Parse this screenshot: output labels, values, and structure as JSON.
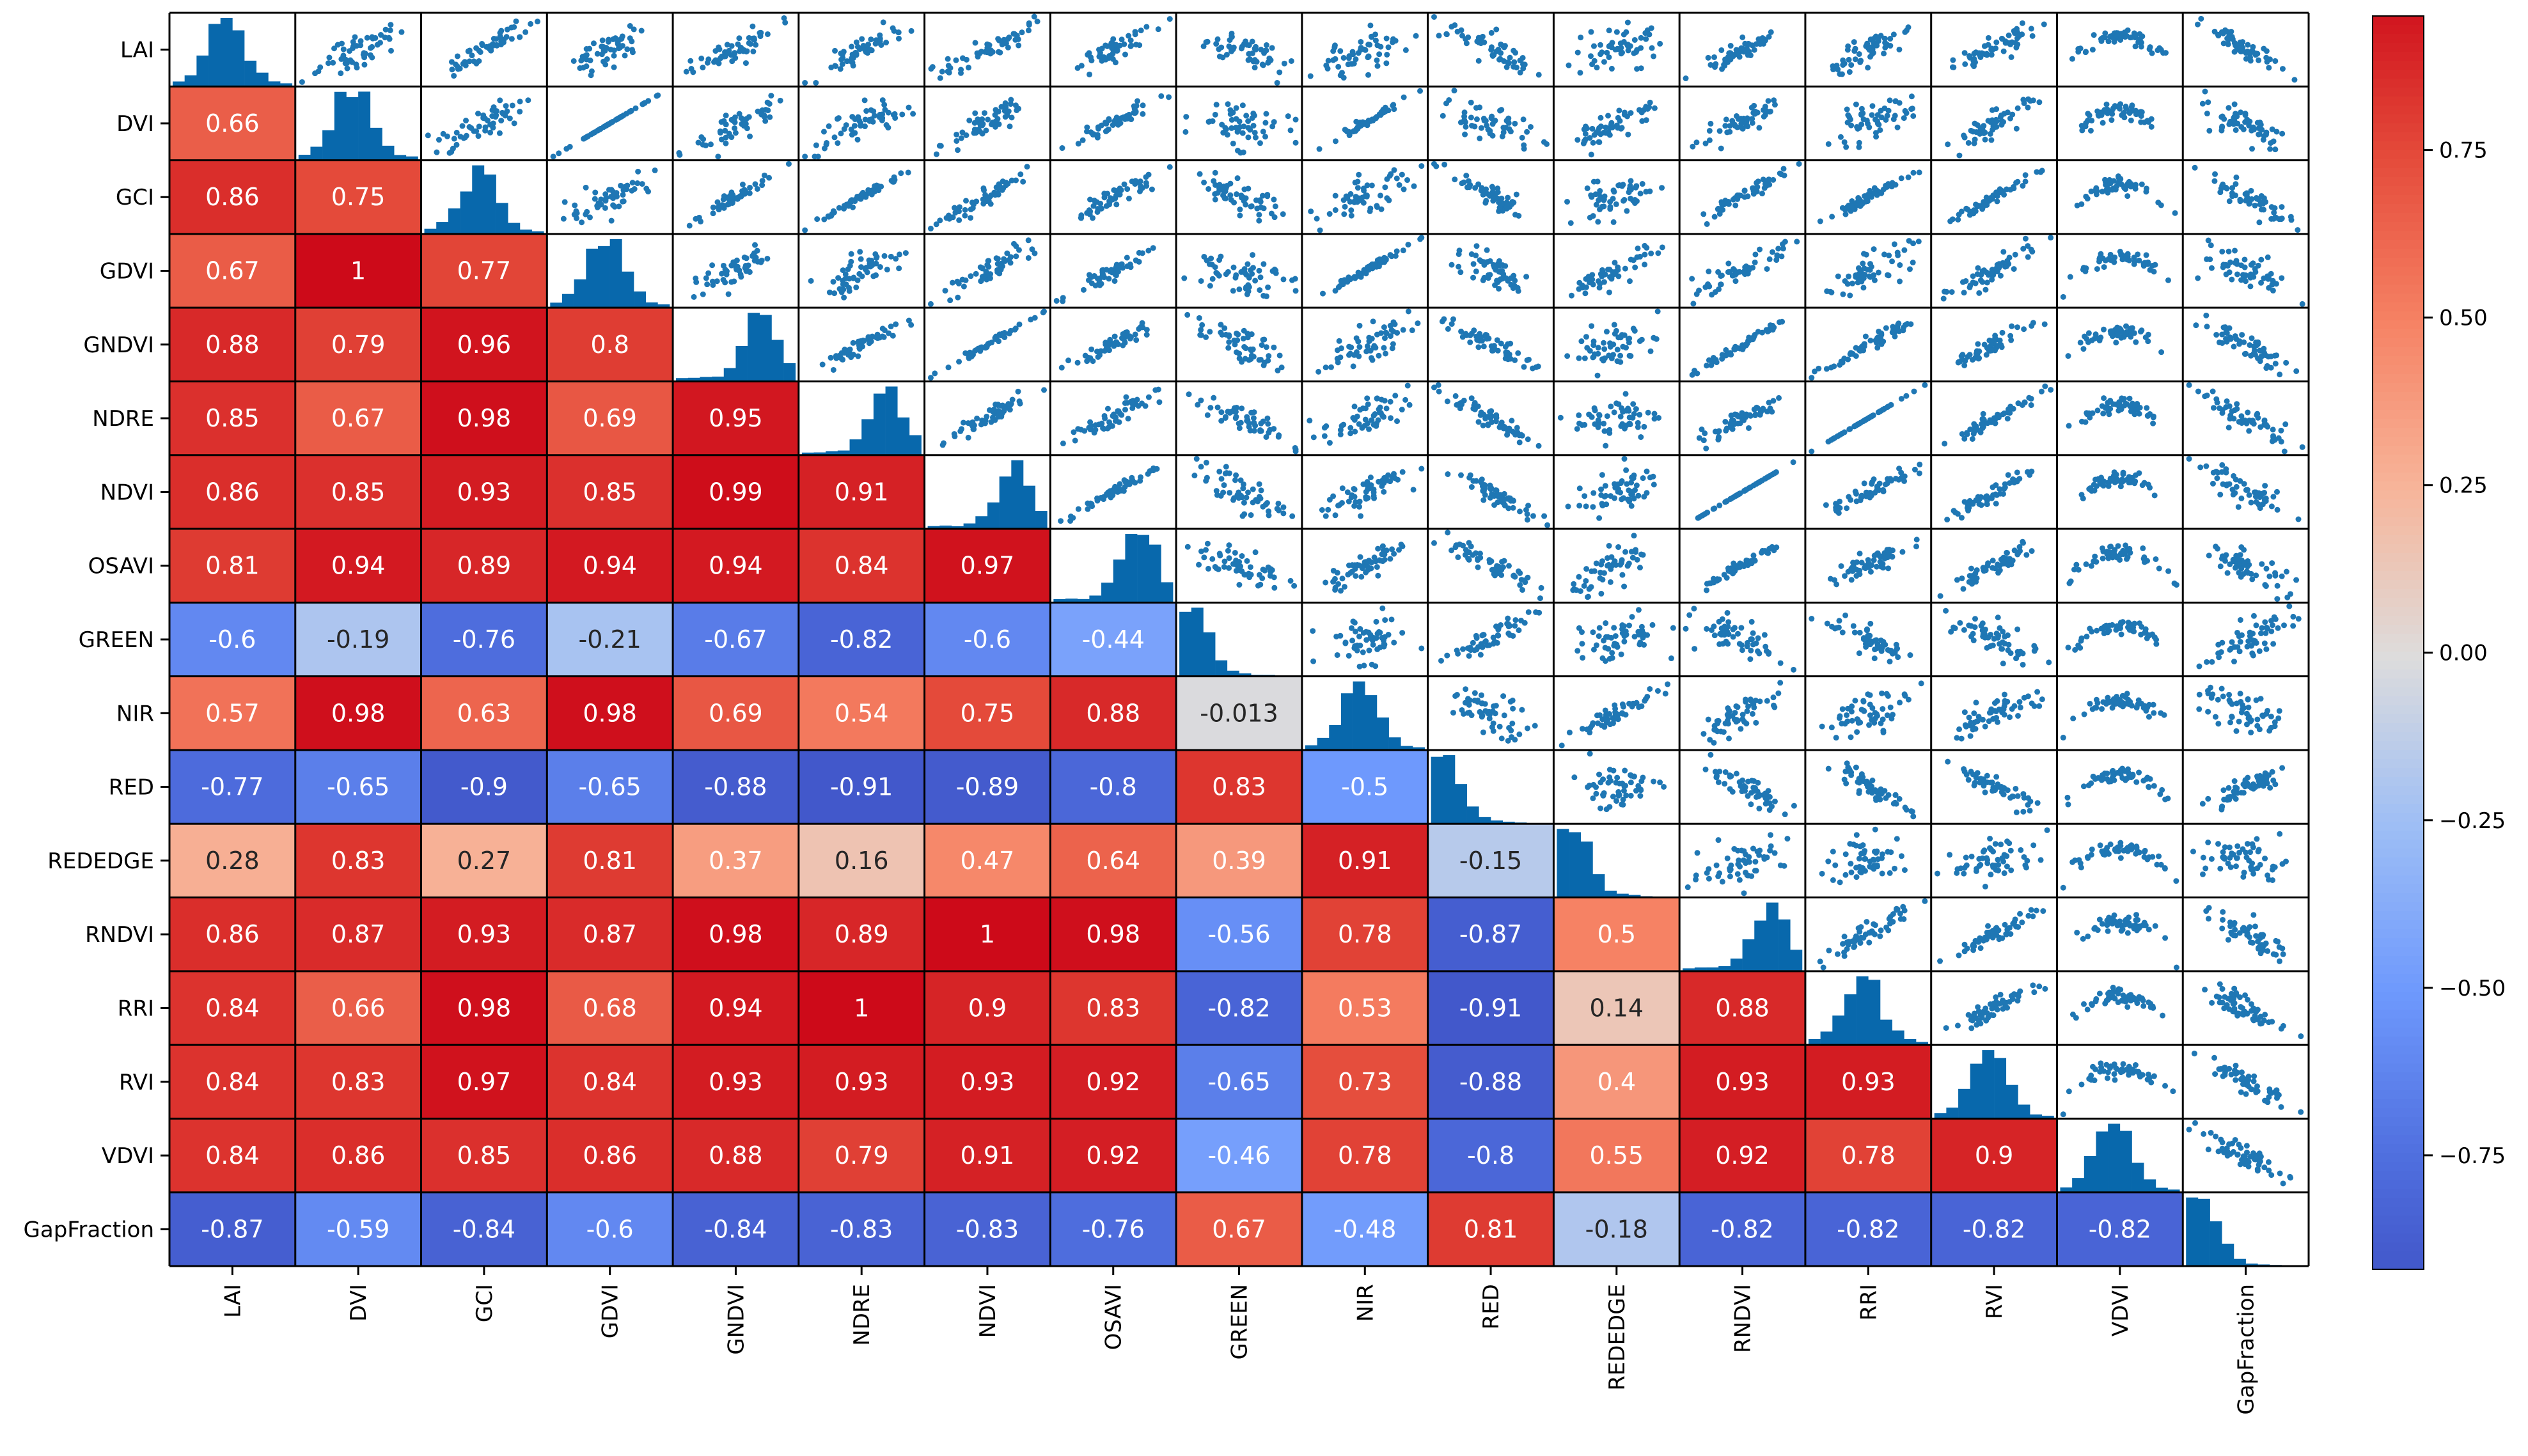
{
  "chart_data": {
    "type": "heatmap",
    "title": "",
    "variables": [
      "LAI",
      "DVI",
      "GCI",
      "GDVI",
      "GNDVI",
      "NDRE",
      "NDVI",
      "OSAVI",
      "GREEN",
      "NIR",
      "RED",
      "REDEDGE",
      "RNDVI",
      "RRI",
      "RVI",
      "VDVI",
      "GapFraction"
    ],
    "lower_triangle_correlations": [
      [],
      [
        "0.66"
      ],
      [
        "0.86",
        "0.75"
      ],
      [
        "0.67",
        "1",
        "0.77"
      ],
      [
        "0.88",
        "0.79",
        "0.96",
        "0.8"
      ],
      [
        "0.85",
        "0.67",
        "0.98",
        "0.69",
        "0.95"
      ],
      [
        "0.86",
        "0.85",
        "0.93",
        "0.85",
        "0.99",
        "0.91"
      ],
      [
        "0.81",
        "0.94",
        "0.89",
        "0.94",
        "0.94",
        "0.84",
        "0.97"
      ],
      [
        "-0.6",
        "-0.19",
        "-0.76",
        "-0.21",
        "-0.67",
        "-0.82",
        "-0.6",
        "-0.44"
      ],
      [
        "0.57",
        "0.98",
        "0.63",
        "0.98",
        "0.69",
        "0.54",
        "0.75",
        "0.88",
        "-0.013"
      ],
      [
        "-0.77",
        "-0.65",
        "-0.9",
        "-0.65",
        "-0.88",
        "-0.91",
        "-0.89",
        "-0.8",
        "0.83",
        "-0.5"
      ],
      [
        "0.28",
        "0.83",
        "0.27",
        "0.81",
        "0.37",
        "0.16",
        "0.47",
        "0.64",
        "0.39",
        "0.91",
        "-0.15"
      ],
      [
        "0.86",
        "0.87",
        "0.93",
        "0.87",
        "0.98",
        "0.89",
        "1",
        "0.98",
        "-0.56",
        "0.78",
        "-0.87",
        "0.5"
      ],
      [
        "0.84",
        "0.66",
        "0.98",
        "0.68",
        "0.94",
        "1",
        "0.9",
        "0.83",
        "-0.82",
        "0.53",
        "-0.91",
        "0.14",
        "0.88"
      ],
      [
        "0.84",
        "0.83",
        "0.97",
        "0.84",
        "0.93",
        "0.93",
        "0.93",
        "0.92",
        "-0.65",
        "0.73",
        "-0.88",
        "0.4",
        "0.93",
        "0.93"
      ],
      [
        "0.84",
        "0.86",
        "0.85",
        "0.86",
        "0.88",
        "0.79",
        "0.91",
        "0.92",
        "-0.46",
        "0.78",
        "-0.8",
        "0.55",
        "0.92",
        "0.78",
        "0.9"
      ],
      [
        "-0.87",
        "-0.59",
        "-0.84",
        "-0.6",
        "-0.84",
        "-0.83",
        "-0.83",
        "-0.76",
        "0.67",
        "-0.48",
        "0.81",
        "-0.18",
        "-0.82",
        "-0.82",
        "-0.82",
        "-0.82"
      ]
    ],
    "diagonal": "histogram",
    "upper_triangle": "scatter",
    "colormap": "coolwarm",
    "colorbar": {
      "range": [
        -0.92,
        0.95
      ],
      "ticks": [
        0.75,
        0.5,
        0.25,
        0.0,
        -0.25,
        -0.5,
        -0.75
      ],
      "tick_labels": [
        "0.75",
        "0.50",
        "0.25",
        "0.00",
        "−0.25",
        "−0.50",
        "−0.75"
      ]
    },
    "colors": {
      "marker": "#1f77b4",
      "histogram": "#0868ac",
      "negative_end": "#3b4cc0",
      "neutral": "#dddcdc",
      "positive_end": "#d20a1a"
    }
  }
}
